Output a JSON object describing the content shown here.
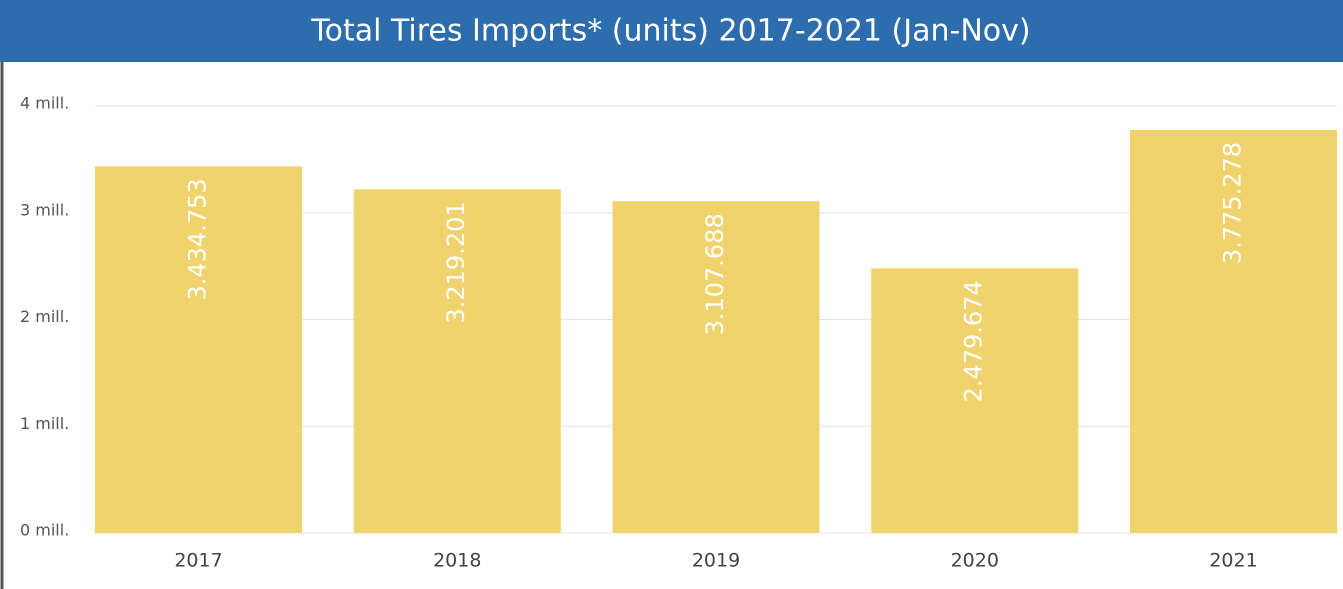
{
  "chart_data": {
    "type": "bar",
    "title": "Total Tires Imports* (units) 2017-2021 (Jan-Nov)",
    "categories": [
      "2017",
      "2018",
      "2019",
      "2020",
      "2021"
    ],
    "values": [
      3434753,
      3219201,
      3107688,
      2479674,
      3775278
    ],
    "value_labels": [
      "3.434.753",
      "3.219.201",
      "3.107.688",
      "2.479.674",
      "3.775.278"
    ],
    "color": "#f0d36c",
    "ylim": [
      0,
      4000000
    ],
    "yticks": [
      {
        "value": 0,
        "label": "0 mill."
      },
      {
        "value": 1000000,
        "label": "1 mill."
      },
      {
        "value": 2000000,
        "label": "2 mill."
      },
      {
        "value": 3000000,
        "label": "3 mill."
      },
      {
        "value": 4000000,
        "label": "4 mill."
      }
    ],
    "grid": true
  }
}
